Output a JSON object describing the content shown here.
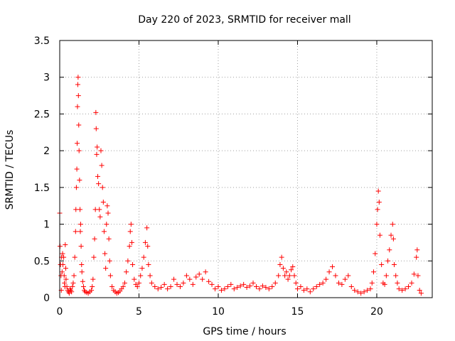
{
  "chart_data": {
    "type": "scatter",
    "title": "Day 220 of 2023, SRMTID for receiver mall",
    "xlabel": "GPS time / hours",
    "ylabel": "SRMTID / TECUs",
    "xlim": [
      0,
      23.5
    ],
    "ylim": [
      0,
      3.5
    ],
    "grid": true,
    "marker": "+",
    "marker_color": "#ff0000",
    "x_ticks": [
      0,
      5,
      10,
      15,
      20
    ],
    "y_ticks": [
      0,
      0.5,
      1,
      1.5,
      2,
      2.5,
      3,
      3.5
    ],
    "x_tick_labels": [
      "0",
      "5",
      "10",
      "15",
      "20"
    ],
    "y_tick_labels": [
      "0",
      "0.5",
      "1",
      "1.5",
      "2",
      "2.5",
      "3",
      "3.5"
    ],
    "series": [
      {
        "name": "SRMTID",
        "points": [
          [
            0.0,
            1.15
          ],
          [
            0.02,
            0.7
          ],
          [
            0.05,
            0.45
          ],
          [
            0.08,
            0.3
          ],
          [
            0.1,
            0.1
          ],
          [
            0.12,
            0.55
          ],
          [
            0.15,
            0.35
          ],
          [
            0.18,
            0.6
          ],
          [
            0.2,
            0.45
          ],
          [
            0.25,
            0.55
          ],
          [
            0.28,
            0.3
          ],
          [
            0.3,
            0.2
          ],
          [
            0.33,
            0.15
          ],
          [
            0.35,
            0.72
          ],
          [
            0.38,
            0.4
          ],
          [
            0.4,
            0.25
          ],
          [
            0.45,
            0.15
          ],
          [
            0.5,
            0.1
          ],
          [
            0.55,
            0.08
          ],
          [
            0.6,
            0.06
          ],
          [
            0.65,
            0.12
          ],
          [
            0.7,
            0.1
          ],
          [
            0.75,
            0.08
          ],
          [
            0.8,
            0.15
          ],
          [
            0.85,
            0.2
          ],
          [
            0.9,
            0.3
          ],
          [
            0.95,
            0.55
          ],
          [
            1.0,
            0.9
          ],
          [
            1.02,
            1.2
          ],
          [
            1.05,
            1.5
          ],
          [
            1.08,
            1.75
          ],
          [
            1.1,
            2.1
          ],
          [
            1.12,
            2.6
          ],
          [
            1.14,
            2.9
          ],
          [
            1.16,
            3.0
          ],
          [
            1.18,
            2.75
          ],
          [
            1.2,
            2.35
          ],
          [
            1.22,
            2.0
          ],
          [
            1.25,
            1.6
          ],
          [
            1.28,
            1.2
          ],
          [
            1.3,
            0.9
          ],
          [
            1.32,
            1.0
          ],
          [
            1.35,
            0.7
          ],
          [
            1.38,
            0.45
          ],
          [
            1.4,
            0.35
          ],
          [
            1.45,
            0.22
          ],
          [
            1.5,
            0.15
          ],
          [
            1.55,
            0.1
          ],
          [
            1.6,
            0.08
          ],
          [
            1.7,
            0.07
          ],
          [
            1.8,
            0.06
          ],
          [
            1.9,
            0.08
          ],
          [
            2.0,
            0.1
          ],
          [
            2.05,
            0.15
          ],
          [
            2.1,
            0.25
          ],
          [
            2.15,
            0.55
          ],
          [
            2.2,
            0.8
          ],
          [
            2.25,
            1.2
          ],
          [
            2.28,
            2.52
          ],
          [
            2.3,
            2.3
          ],
          [
            2.33,
            1.95
          ],
          [
            2.36,
            2.05
          ],
          [
            2.4,
            1.65
          ],
          [
            2.45,
            1.55
          ],
          [
            2.5,
            1.2
          ],
          [
            2.55,
            1.1
          ],
          [
            2.6,
            2.0
          ],
          [
            2.65,
            1.8
          ],
          [
            2.7,
            1.5
          ],
          [
            2.75,
            1.3
          ],
          [
            2.8,
            0.9
          ],
          [
            2.85,
            0.6
          ],
          [
            2.9,
            0.4
          ],
          [
            2.95,
            1.0
          ],
          [
            3.0,
            1.25
          ],
          [
            3.05,
            1.15
          ],
          [
            3.1,
            0.8
          ],
          [
            3.15,
            0.5
          ],
          [
            3.2,
            0.3
          ],
          [
            3.3,
            0.15
          ],
          [
            3.4,
            0.1
          ],
          [
            3.5,
            0.08
          ],
          [
            3.6,
            0.06
          ],
          [
            3.7,
            0.07
          ],
          [
            3.8,
            0.09
          ],
          [
            3.9,
            0.12
          ],
          [
            4.0,
            0.15
          ],
          [
            4.1,
            0.2
          ],
          [
            4.2,
            0.35
          ],
          [
            4.3,
            0.5
          ],
          [
            4.4,
            0.7
          ],
          [
            4.45,
            0.9
          ],
          [
            4.5,
            1.0
          ],
          [
            4.55,
            0.75
          ],
          [
            4.6,
            0.45
          ],
          [
            4.7,
            0.25
          ],
          [
            4.8,
            0.18
          ],
          [
            4.9,
            0.15
          ],
          [
            5.0,
            0.2
          ],
          [
            5.1,
            0.3
          ],
          [
            5.2,
            0.4
          ],
          [
            5.3,
            0.55
          ],
          [
            5.4,
            0.75
          ],
          [
            5.5,
            0.95
          ],
          [
            5.55,
            0.7
          ],
          [
            5.6,
            0.45
          ],
          [
            5.7,
            0.3
          ],
          [
            5.8,
            0.2
          ],
          [
            6.0,
            0.15
          ],
          [
            6.2,
            0.12
          ],
          [
            6.4,
            0.14
          ],
          [
            6.6,
            0.18
          ],
          [
            6.8,
            0.12
          ],
          [
            7.0,
            0.15
          ],
          [
            7.2,
            0.25
          ],
          [
            7.4,
            0.18
          ],
          [
            7.6,
            0.15
          ],
          [
            7.8,
            0.2
          ],
          [
            8.0,
            0.3
          ],
          [
            8.2,
            0.25
          ],
          [
            8.4,
            0.18
          ],
          [
            8.6,
            0.28
          ],
          [
            8.8,
            0.32
          ],
          [
            9.0,
            0.25
          ],
          [
            9.2,
            0.35
          ],
          [
            9.4,
            0.22
          ],
          [
            9.6,
            0.18
          ],
          [
            9.8,
            0.12
          ],
          [
            10.0,
            0.15
          ],
          [
            10.2,
            0.1
          ],
          [
            10.4,
            0.12
          ],
          [
            10.6,
            0.15
          ],
          [
            10.8,
            0.18
          ],
          [
            11.0,
            0.12
          ],
          [
            11.2,
            0.14
          ],
          [
            11.4,
            0.16
          ],
          [
            11.6,
            0.18
          ],
          [
            11.8,
            0.14
          ],
          [
            12.0,
            0.16
          ],
          [
            12.2,
            0.2
          ],
          [
            12.4,
            0.15
          ],
          [
            12.6,
            0.12
          ],
          [
            12.8,
            0.16
          ],
          [
            13.0,
            0.14
          ],
          [
            13.2,
            0.12
          ],
          [
            13.4,
            0.15
          ],
          [
            13.6,
            0.2
          ],
          [
            13.8,
            0.3
          ],
          [
            13.9,
            0.45
          ],
          [
            14.0,
            0.55
          ],
          [
            14.1,
            0.4
          ],
          [
            14.2,
            0.3
          ],
          [
            14.3,
            0.35
          ],
          [
            14.4,
            0.25
          ],
          [
            14.5,
            0.3
          ],
          [
            14.6,
            0.38
          ],
          [
            14.7,
            0.42
          ],
          [
            14.8,
            0.3
          ],
          [
            14.9,
            0.2
          ],
          [
            15.0,
            0.12
          ],
          [
            15.2,
            0.15
          ],
          [
            15.4,
            0.1
          ],
          [
            15.6,
            0.12
          ],
          [
            15.8,
            0.08
          ],
          [
            16.0,
            0.12
          ],
          [
            16.2,
            0.15
          ],
          [
            16.4,
            0.18
          ],
          [
            16.6,
            0.2
          ],
          [
            16.8,
            0.25
          ],
          [
            17.0,
            0.35
          ],
          [
            17.2,
            0.42
          ],
          [
            17.4,
            0.3
          ],
          [
            17.6,
            0.2
          ],
          [
            17.8,
            0.18
          ],
          [
            18.0,
            0.25
          ],
          [
            18.2,
            0.3
          ],
          [
            18.4,
            0.15
          ],
          [
            18.6,
            0.1
          ],
          [
            18.8,
            0.08
          ],
          [
            19.0,
            0.06
          ],
          [
            19.2,
            0.08
          ],
          [
            19.4,
            0.1
          ],
          [
            19.6,
            0.12
          ],
          [
            19.7,
            0.2
          ],
          [
            19.8,
            0.35
          ],
          [
            19.9,
            0.6
          ],
          [
            20.0,
            1.0
          ],
          [
            20.05,
            1.2
          ],
          [
            20.1,
            1.45
          ],
          [
            20.15,
            1.3
          ],
          [
            20.2,
            0.85
          ],
          [
            20.3,
            0.45
          ],
          [
            20.4,
            0.2
          ],
          [
            20.5,
            0.18
          ],
          [
            20.6,
            0.3
          ],
          [
            20.7,
            0.5
          ],
          [
            20.8,
            0.65
          ],
          [
            20.9,
            0.85
          ],
          [
            21.0,
            1.0
          ],
          [
            21.05,
            0.8
          ],
          [
            21.1,
            0.45
          ],
          [
            21.2,
            0.3
          ],
          [
            21.3,
            0.2
          ],
          [
            21.4,
            0.12
          ],
          [
            21.6,
            0.1
          ],
          [
            21.8,
            0.12
          ],
          [
            22.0,
            0.15
          ],
          [
            22.2,
            0.2
          ],
          [
            22.35,
            0.32
          ],
          [
            22.5,
            0.55
          ],
          [
            22.55,
            0.65
          ],
          [
            22.6,
            0.3
          ],
          [
            22.7,
            0.1
          ],
          [
            22.8,
            0.06
          ]
        ]
      }
    ]
  }
}
